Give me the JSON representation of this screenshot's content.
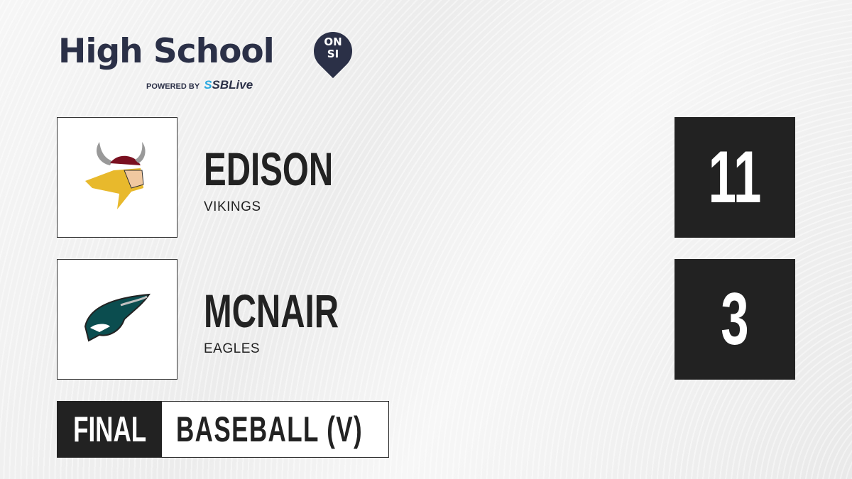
{
  "brand": {
    "title": "High School",
    "badge_top": "ON",
    "badge_bottom": "SI",
    "powered_by": "POWERED BY",
    "partner_prefix": "S",
    "partner": "SBLive"
  },
  "teams": [
    {
      "name": "EDISON",
      "nickname": "VIKINGS",
      "score": "11",
      "logo_icon": "viking-logo-icon"
    },
    {
      "name": "MCNAIR",
      "nickname": "EAGLES",
      "score": "3",
      "logo_icon": "eagle-logo-icon"
    }
  ],
  "status": {
    "label": "FINAL",
    "sport": "BASEBALL (V)"
  },
  "colors": {
    "brand": "#2b3047",
    "accent": "#29a8e0",
    "dark": "#222222"
  }
}
